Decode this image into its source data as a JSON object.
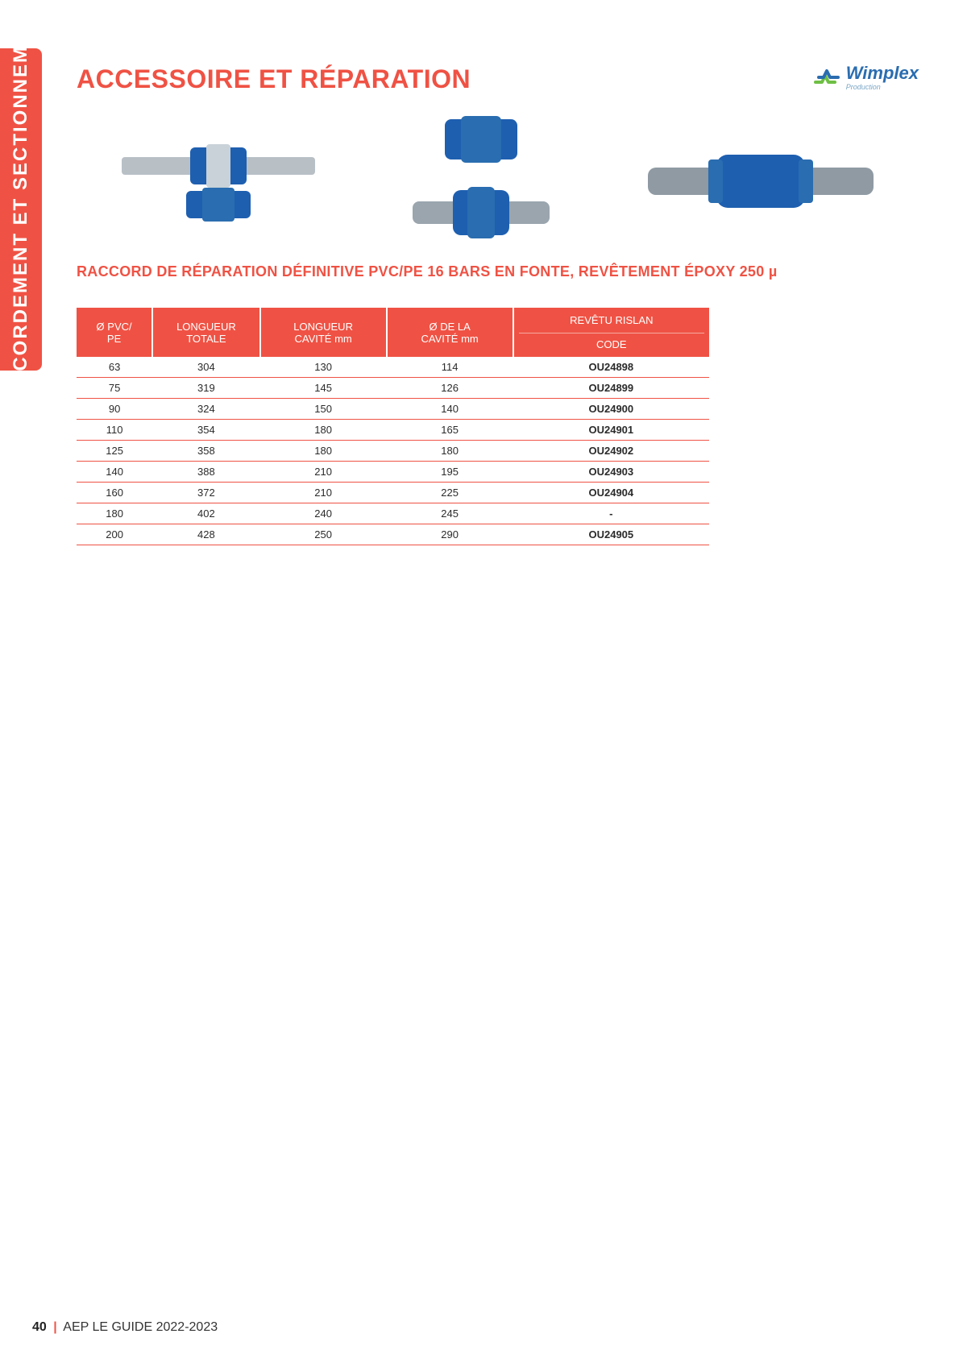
{
  "colors": {
    "accent": "#ef5244",
    "logo_blue": "#2a6db0",
    "logo_green": "#6fbf44",
    "text": "#2b2b2b",
    "white": "#ffffff"
  },
  "sideTab": {
    "label": "RACCORDEMENT ET SECTIONNEMENT"
  },
  "header": {
    "title": "ACCESSOIRE ET RÉPARATION",
    "logo": {
      "name": "Wimplex",
      "tagline": "Production"
    }
  },
  "subheading": "RACCORD DE RÉPARATION DÉFINITIVE PVC/PE 16 BARS EN FONTE, REVÊTEMENT ÉPOXY 250 µ",
  "table": {
    "columns": [
      {
        "label": "Ø PVC/\nPE"
      },
      {
        "label": "LONGUEUR\nTOTALE"
      },
      {
        "label": "LONGUEUR\nCAVITÉ mm"
      },
      {
        "label": "Ø DE LA\nCAVITÉ mm"
      },
      {
        "labelTop": "REVÊTU RISLAN",
        "labelBottom": "CODE"
      }
    ],
    "rows": [
      [
        "63",
        "304",
        "130",
        "114",
        "OU24898"
      ],
      [
        "75",
        "319",
        "145",
        "126",
        "OU24899"
      ],
      [
        "90",
        "324",
        "150",
        "140",
        "OU24900"
      ],
      [
        "110",
        "354",
        "180",
        "165",
        "OU24901"
      ],
      [
        "125",
        "358",
        "180",
        "180",
        "OU24902"
      ],
      [
        "140",
        "388",
        "210",
        "195",
        "OU24903"
      ],
      [
        "160",
        "372",
        "210",
        "225",
        "OU24904"
      ],
      [
        "180",
        "402",
        "240",
        "245",
        "-"
      ],
      [
        "200",
        "428",
        "250",
        "290",
        "OU24905"
      ]
    ]
  },
  "footer": {
    "pageNumber": "40",
    "separator": "|",
    "text": "AEP LE GUIDE 2022-2023"
  },
  "productImages": {
    "count": 3,
    "description": "blue cast-iron PVC/PE repair couplings",
    "coupling_color": "#1e5fb0",
    "pipe_color": "#9aa5ae"
  }
}
